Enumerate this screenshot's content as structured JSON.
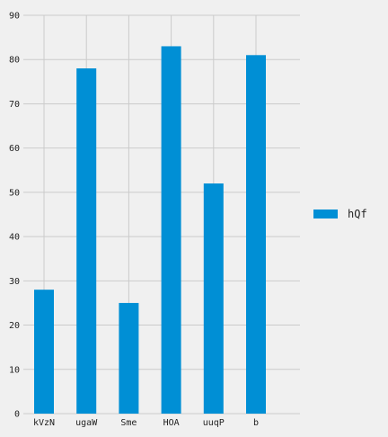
{
  "chart_data": {
    "type": "bar",
    "title": "",
    "xlabel": "",
    "ylabel": "",
    "categories": [
      "kVzN",
      "ugaW",
      "Sme",
      "HOA",
      "uuqP",
      "b"
    ],
    "series": [
      {
        "name": "hQf",
        "values": [
          28,
          78,
          25,
          83,
          52,
          81
        ],
        "color": "#008fd5"
      }
    ],
    "ylim": [
      0,
      90
    ],
    "yticks": [
      0,
      10,
      20,
      30,
      40,
      50,
      60,
      70,
      80,
      90
    ],
    "grid": true,
    "legend_position": "right"
  },
  "colors": {
    "background": "#f0f0f0",
    "grid": "#cbcbcb",
    "bar": "#008fd5"
  }
}
